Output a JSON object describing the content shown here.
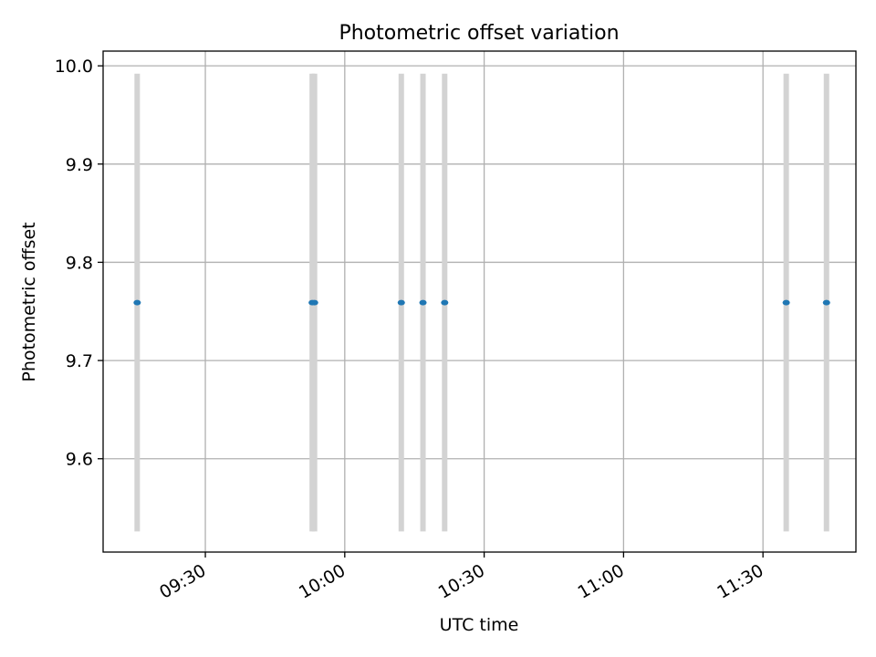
{
  "chart_data": {
    "type": "scatter",
    "title": "Photometric offset variation",
    "xlabel": "UTC time",
    "ylabel": "Photometric offset",
    "x_ticks": [
      "09:30",
      "10:00",
      "10:30",
      "11:00",
      "11:30"
    ],
    "y_ticks": [
      "9.6",
      "9.7",
      "9.8",
      "9.9",
      "10.0"
    ],
    "xlim": [
      "09:08",
      "11:50"
    ],
    "ylim": [
      9.505,
      10.015
    ],
    "grid": true,
    "points": [
      {
        "x": "09:15:20",
        "y": 9.759,
        "err": 0.233
      },
      {
        "x": "09:53:00",
        "y": 9.759,
        "err": 0.233
      },
      {
        "x": "09:53:30",
        "y": 9.759,
        "err": 0.233
      },
      {
        "x": "10:12:10",
        "y": 9.759,
        "err": 0.233
      },
      {
        "x": "10:16:50",
        "y": 9.759,
        "err": 0.233
      },
      {
        "x": "10:21:30",
        "y": 9.759,
        "err": 0.233
      },
      {
        "x": "11:35:00",
        "y": 9.759,
        "err": 0.233
      },
      {
        "x": "11:43:40",
        "y": 9.759,
        "err": 0.233
      }
    ],
    "colors": {
      "marker": "#1f77b4",
      "errorbar": "#d3d3d3",
      "grid": "#b0b0b0",
      "axes": "#000000"
    }
  }
}
